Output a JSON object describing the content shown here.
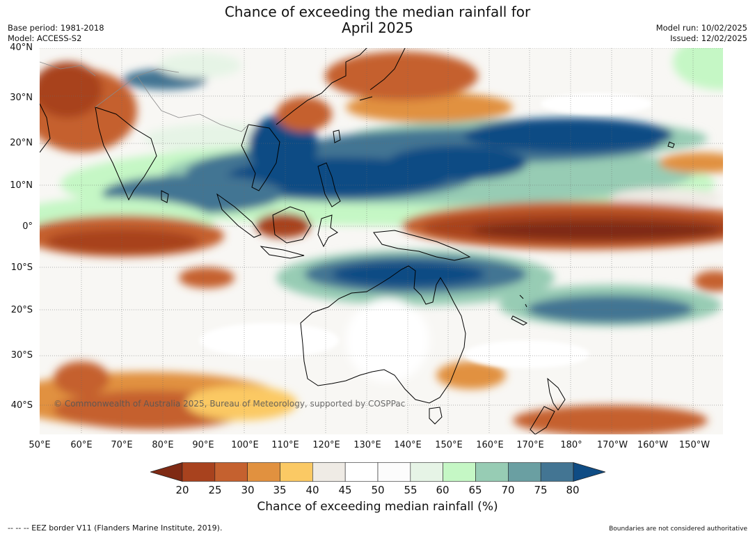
{
  "title": {
    "line1": "Chance of exceeding the median rainfall for",
    "line2": "April 2025"
  },
  "meta": {
    "base_period": "Base period: 1981-2018",
    "model": "Model: ACCESS-S2",
    "model_run": "Model run: 10/02/2025",
    "issued": "Issued: 12/02/2025"
  },
  "axes": {
    "lat_labels": [
      "40°N",
      "30°N",
      "20°N",
      "10°N",
      "0°",
      "10°S",
      "20°S",
      "30°S",
      "40°S"
    ],
    "lon_labels": [
      "50°E",
      "60°E",
      "70°E",
      "80°E",
      "90°E",
      "100°E",
      "110°E",
      "120°E",
      "130°E",
      "140°E",
      "150°E",
      "160°E",
      "170°E",
      "180°",
      "170°W",
      "160°W",
      "150°W"
    ]
  },
  "credit": "© Commonwealth of Australia 2025, Bureau of Meteorology, supported by COSPPac",
  "colorbar": {
    "title": "Chance of exceeding median rainfall (%)",
    "ticks": [
      "20",
      "25",
      "30",
      "35",
      "40",
      "45",
      "50",
      "55",
      "60",
      "65",
      "70",
      "75",
      "80"
    ],
    "colors": [
      "#7f2a14",
      "#a8421e",
      "#c5612f",
      "#e1913f",
      "#fbc964",
      "#efebe5",
      "#ffffff",
      "#fcfcfc",
      "#e6f4e6",
      "#c5f7c5",
      "#97ccb4",
      "#6a9fa2",
      "#437593",
      "#0f4c84"
    ]
  },
  "footer": {
    "left": "--  --  -- EEZ border V11 (Flanders Marine Institute, 2019).",
    "right": "Boundaries are not considered authoritative"
  }
}
